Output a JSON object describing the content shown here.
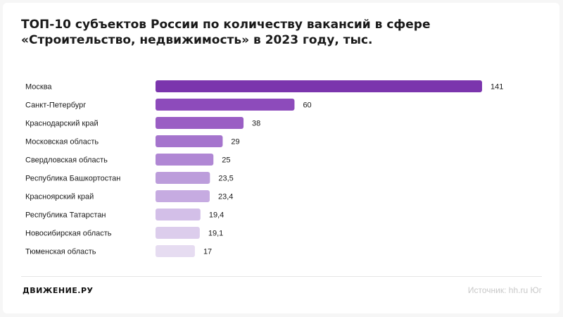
{
  "header": {
    "title_line1": "ТОП-10 субъектов России по количеству вакансий в сфере",
    "title_line2": "«Строительство, недвижимость» в 2023 году, тыс."
  },
  "footer": {
    "brand": "ДВИЖЕНИЕ.РУ",
    "source": "Источник: hh.ru Юг"
  },
  "chart_data": {
    "type": "bar",
    "orientation": "horizontal",
    "categories": [
      "Москва",
      "Санкт-Петербург",
      "Краснодарский край",
      "Московская область",
      "Свердловская область",
      "Республика Башкортостан",
      "Красноярский край",
      "Республика Татарстан",
      "Новосибирская область",
      "Тюменская область"
    ],
    "values": [
      141,
      60,
      38,
      29,
      25,
      23.5,
      23.4,
      19.4,
      19.1,
      17
    ],
    "value_labels": [
      "141",
      "60",
      "38",
      "29",
      "25",
      "23,5",
      "23,4",
      "19,4",
      "19,1",
      "17"
    ],
    "colors": [
      "#7b35ad",
      "#8d4bbb",
      "#9a5ec4",
      "#a574cd",
      "#b087d4",
      "#bc9ddb",
      "#c6abe1",
      "#d3bfe8",
      "#dccdec",
      "#e6dcf1"
    ],
    "xlim": [
      0,
      141
    ],
    "grid": false,
    "legend": "none"
  }
}
